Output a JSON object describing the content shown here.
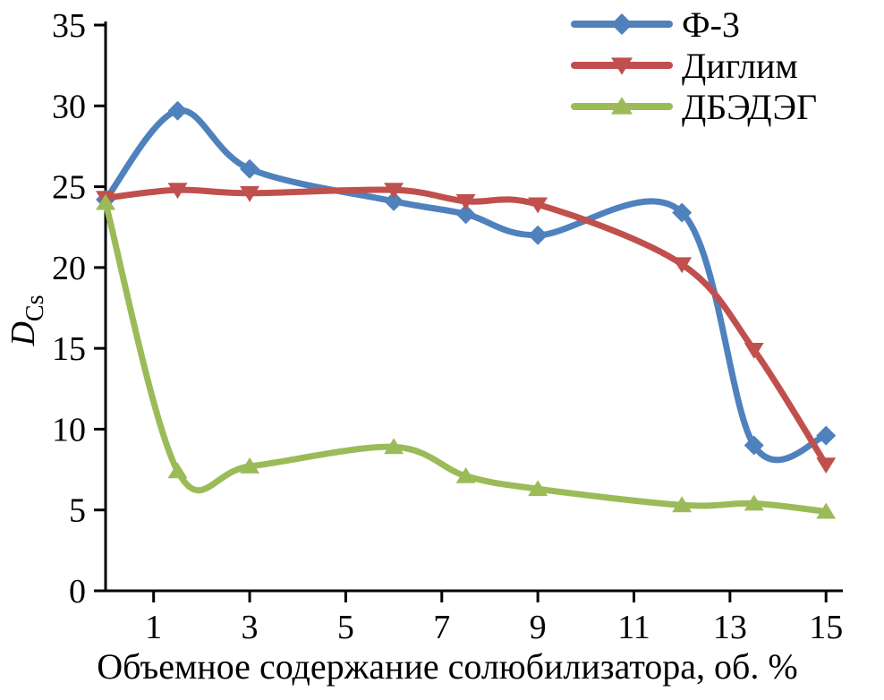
{
  "chart_data": {
    "type": "line",
    "title": "",
    "xlabel": "Объемное содержание солюбилизатора, об. %",
    "ylabel_main": "D",
    "ylabel_sub": "Cs",
    "xlim": [
      0,
      15.35
    ],
    "ylim": [
      0,
      35
    ],
    "xticks": [
      1,
      3,
      5,
      7,
      9,
      11,
      13,
      15
    ],
    "yticks": [
      0,
      5,
      10,
      15,
      20,
      25,
      30,
      35
    ],
    "grid": false,
    "legend_position": "top-right",
    "axis_color": "#000000",
    "series": [
      {
        "name": "Ф-3",
        "color": "#4f81bd",
        "marker": "diamond",
        "x": [
          0,
          1.5,
          3,
          6,
          7.5,
          9,
          12,
          13.5,
          15
        ],
        "y": [
          24.2,
          29.7,
          26.1,
          24.1,
          23.3,
          22.0,
          23.4,
          9.0,
          9.6
        ]
      },
      {
        "name": "Диглим",
        "color": "#c0504d",
        "marker": "triangle-down",
        "x": [
          0,
          1.5,
          3,
          6,
          7.5,
          9,
          12,
          13.5,
          15
        ],
        "y": [
          24.3,
          24.8,
          24.6,
          24.8,
          24.1,
          23.9,
          20.2,
          14.9,
          7.8
        ]
      },
      {
        "name": "ДБЭДЭГ",
        "color": "#9bbb59",
        "marker": "triangle-up",
        "x": [
          0,
          1.5,
          3,
          6,
          7.5,
          9,
          12,
          13.5,
          15
        ],
        "y": [
          24.0,
          7.4,
          7.7,
          8.9,
          7.1,
          6.3,
          5.3,
          5.4,
          4.9
        ]
      }
    ]
  }
}
